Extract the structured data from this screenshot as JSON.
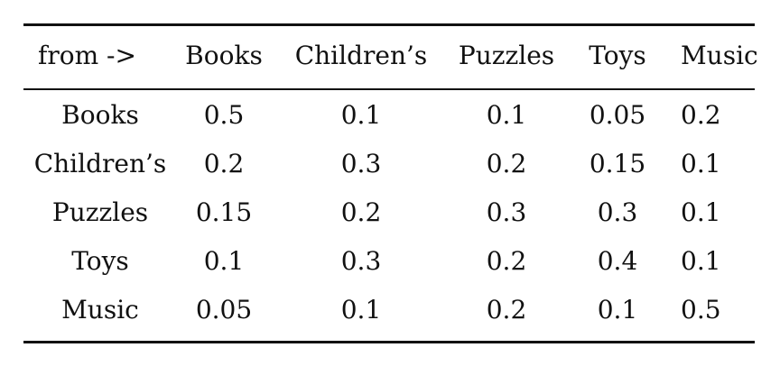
{
  "table": {
    "headers": [
      "from ->",
      "Books",
      "Children’s",
      "Puzzles",
      "Toys",
      "Music"
    ],
    "rows": [
      {
        "label": "Books",
        "values": [
          "0.5",
          "0.1",
          "0.1",
          "0.05",
          "0.2"
        ]
      },
      {
        "label": "Children’s",
        "values": [
          "0.2",
          "0.3",
          "0.2",
          "0.15",
          "0.1"
        ]
      },
      {
        "label": "Puzzles",
        "values": [
          "0.15",
          "0.2",
          "0.3",
          "0.3",
          "0.1"
        ]
      },
      {
        "label": "Toys",
        "values": [
          "0.1",
          "0.3",
          "0.2",
          "0.4",
          "0.1"
        ]
      },
      {
        "label": "Music",
        "values": [
          "0.05",
          "0.1",
          "0.2",
          "0.1",
          "0.5"
        ]
      }
    ]
  }
}
